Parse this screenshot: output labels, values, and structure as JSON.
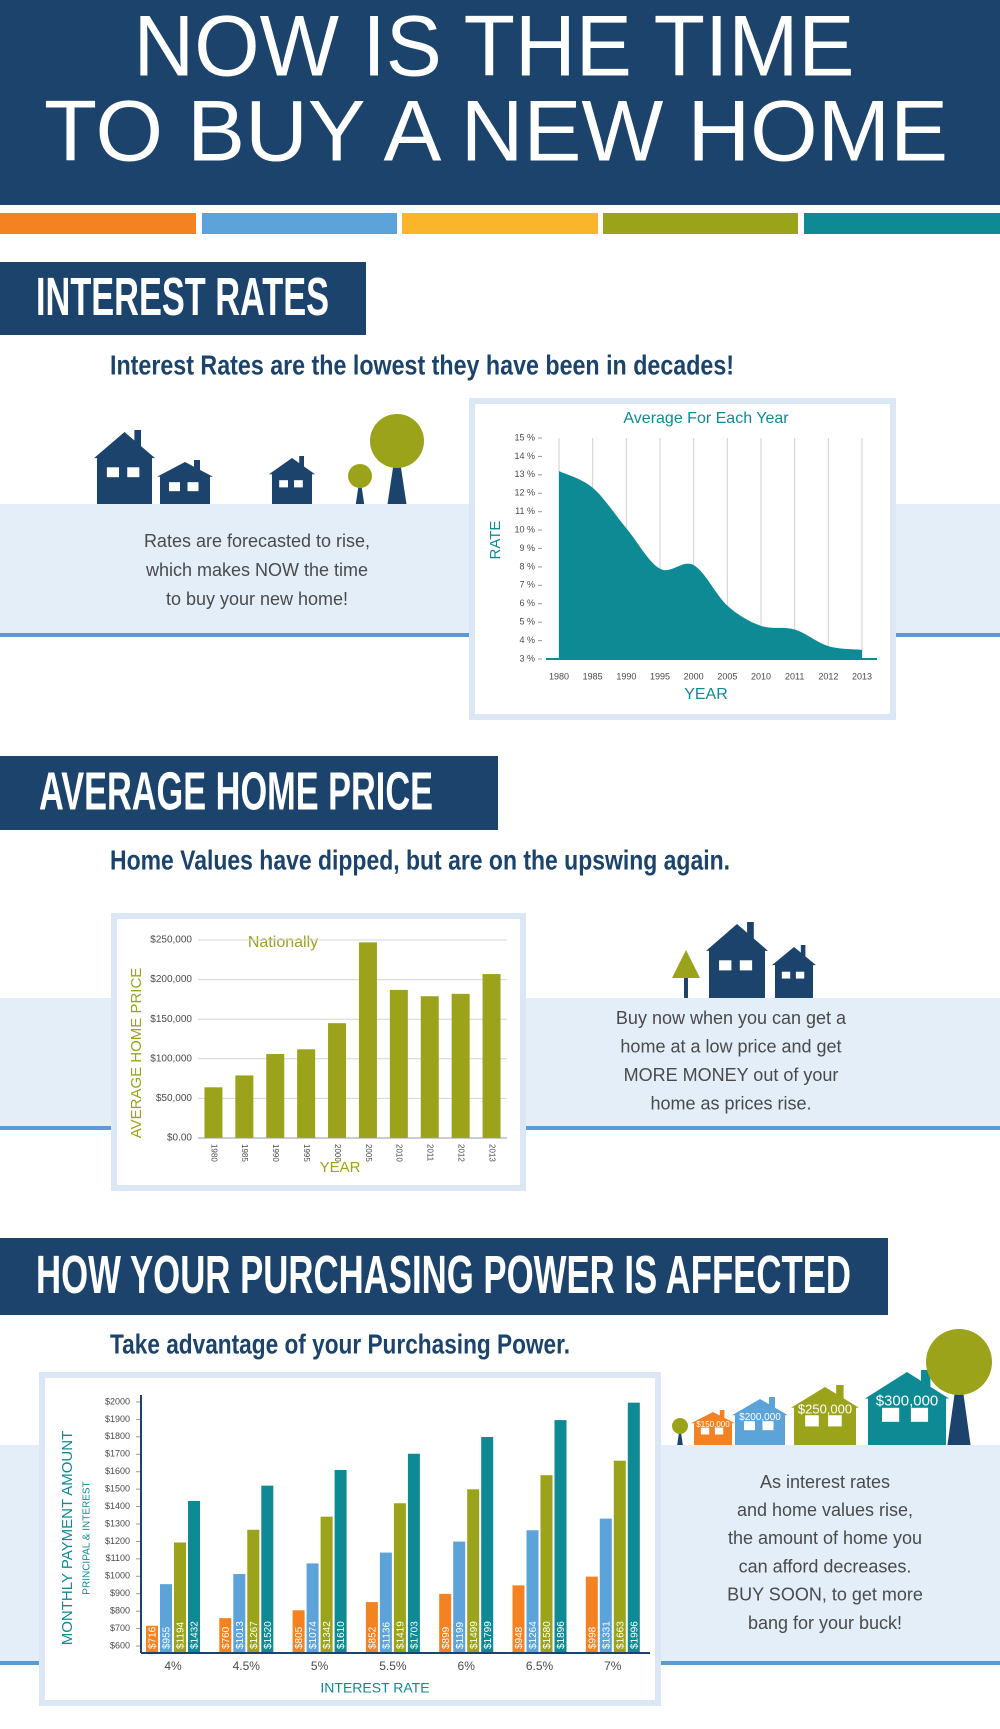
{
  "header": {
    "title_lines": [
      "NOW IS THE TIME",
      "TO BUY A NEW HOME"
    ]
  },
  "sections": [
    {
      "heading": "INTEREST RATES",
      "subheading": "Interest Rates are the lowest they have been in decades!",
      "note_lines": [
        "Rates are forecasted to rise,",
        "which makes NOW the time",
        "to buy your new home!"
      ]
    },
    {
      "heading": "AVERAGE HOME PRICE",
      "subheading": "Home Values have dipped, but are on the upswing again.",
      "note_lines": [
        "Buy now when you can get a",
        "home at a low price and get",
        "MORE MONEY out of your",
        "home as prices rise."
      ]
    },
    {
      "heading": "HOW YOUR PURCHASING POWER IS AFFECTED",
      "subheading": "Take advantage of your Purchasing Power.",
      "note_lines": [
        "As interest rates",
        "and home values rise,",
        "the amount of home you",
        "can afford decreases.",
        "BUY SOON, to get more",
        "bang for your buck!"
      ]
    }
  ],
  "chart_data": [
    {
      "type": "area",
      "title": "Average For Each Year",
      "y_label": "RATE",
      "x_label": "YEAR",
      "categories": [
        "1980",
        "1985",
        "1990",
        "1995",
        "2000",
        "2005",
        "2010",
        "2011",
        "2012",
        "2013"
      ],
      "values": [
        13.2,
        12.3,
        10.1,
        7.9,
        8.1,
        5.9,
        4.8,
        4.6,
        3.7,
        3.5
      ],
      "color": "#0e8a94",
      "ylim": [
        3,
        15
      ],
      "yticks": [
        {
          "value": 3,
          "label": "3 %"
        },
        {
          "value": 4,
          "label": "4 %"
        },
        {
          "value": 5,
          "label": "5 %"
        },
        {
          "value": 6,
          "label": "6 %"
        },
        {
          "value": 7,
          "label": "7 %"
        },
        {
          "value": 8,
          "label": "8 %"
        },
        {
          "value": 9,
          "label": "9 %"
        },
        {
          "value": 10,
          "label": "10 %"
        },
        {
          "value": 11,
          "label": "11 %"
        },
        {
          "value": 12,
          "label": "12 %"
        },
        {
          "value": 13,
          "label": "13 %"
        },
        {
          "value": 14,
          "label": "14 %"
        },
        {
          "value": 15,
          "label": "15 %"
        }
      ],
      "grid": true
    },
    {
      "type": "bar",
      "title": "Nationally",
      "y_label": "AVERAGE HOME PRICE",
      "x_label": "YEAR",
      "categories": [
        "1980",
        "1985",
        "1990",
        "1995",
        "2000",
        "2005",
        "2010",
        "2011",
        "2012",
        "2013"
      ],
      "values": [
        64000,
        79000,
        106000,
        112000,
        145000,
        247000,
        187000,
        179000,
        182000,
        207000
      ],
      "color": "#9aa31a",
      "ylim": [
        0,
        250000
      ],
      "yticks": [
        {
          "value": 0,
          "label": "$0.00"
        },
        {
          "value": 50000,
          "label": "$50,000"
        },
        {
          "value": 100000,
          "label": "$100,000"
        },
        {
          "value": 150000,
          "label": "$150,000"
        },
        {
          "value": 200000,
          "label": "$200,000"
        },
        {
          "value": 250000,
          "label": "$250,000"
        }
      ],
      "grid": true
    },
    {
      "type": "grouped_bar",
      "y_label": "MONTHLY PAYMENT AMOUNT",
      "y_sublabel": "PRINCIPAL & INTEREST",
      "x_label": "INTEREST RATE",
      "categories": [
        "4%",
        "4.5%",
        "5%",
        "5.5%",
        "6%",
        "6.5%",
        "7%"
      ],
      "series": [
        {
          "name": "$150,000",
          "color": "#f58220",
          "values": [
            716,
            760,
            805,
            852,
            899,
            948,
            998
          ],
          "value_labels": [
            "$716",
            "$760",
            "$805",
            "$852",
            "$899",
            "$948",
            "$998"
          ]
        },
        {
          "name": "$200,000",
          "color": "#5ba3d9",
          "values": [
            955,
            1013,
            1074,
            1136,
            1199,
            1264,
            1331
          ],
          "value_labels": [
            "$955",
            "$1013",
            "$1074",
            "$1136",
            "$1199",
            "$1264",
            "$1331"
          ]
        },
        {
          "name": "$250,000",
          "color": "#9aa31a",
          "values": [
            1194,
            1267,
            1342,
            1419,
            1499,
            1580,
            1663
          ],
          "value_labels": [
            "$1194",
            "$1267",
            "$1342",
            "$1419",
            "$1499",
            "$1580",
            "$1663"
          ]
        },
        {
          "name": "$300,000",
          "color": "#0e8a94",
          "values": [
            1432,
            1520,
            1610,
            1703,
            1799,
            1896,
            1996
          ],
          "value_labels": [
            "$1432",
            "$1520",
            "$1610",
            "$1703",
            "$1799",
            "$1896",
            "$1996"
          ]
        }
      ],
      "ylim": [
        560,
        2040
      ],
      "yticks": [
        {
          "value": 600,
          "label": "$600"
        },
        {
          "value": 700,
          "label": "$700"
        },
        {
          "value": 800,
          "label": "$800"
        },
        {
          "value": 900,
          "label": "$900"
        },
        {
          "value": 1000,
          "label": "$1000"
        },
        {
          "value": 1100,
          "label": "$1100"
        },
        {
          "value": 1200,
          "label": "$1200"
        },
        {
          "value": 1300,
          "label": "$1300"
        },
        {
          "value": 1400,
          "label": "$1400"
        },
        {
          "value": 1500,
          "label": "$1500"
        },
        {
          "value": 1600,
          "label": "$1600"
        },
        {
          "value": 1700,
          "label": "$1700"
        },
        {
          "value": 1800,
          "label": "$1800"
        },
        {
          "value": 1900,
          "label": "$1900"
        },
        {
          "value": 2000,
          "label": "$2000"
        }
      ],
      "grid": false
    }
  ]
}
